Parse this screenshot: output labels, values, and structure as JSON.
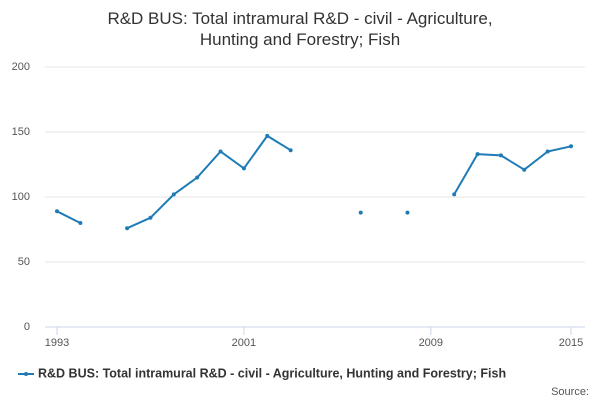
{
  "chart_data": {
    "type": "line",
    "title": "R&D BUS: Total intramural R&D - civil - Agriculture, Hunting and Forestry; Fish",
    "x": [
      1993,
      1994,
      1995,
      1996,
      1997,
      1998,
      1999,
      2000,
      2001,
      2002,
      2003,
      2004,
      2005,
      2006,
      2007,
      2008,
      2009,
      2010,
      2011,
      2012,
      2013,
      2014,
      2015
    ],
    "series": [
      {
        "name": "R&D BUS: Total intramural R&D - civil - Agriculture, Hunting and Forestry; Fish",
        "color": "#1f7bb6",
        "values": [
          89,
          80,
          null,
          76,
          84,
          102,
          115,
          135,
          122,
          147,
          136,
          null,
          null,
          88,
          null,
          88,
          null,
          102,
          133,
          132,
          121,
          135,
          139
        ]
      }
    ],
    "xlim": [
      1993,
      2015
    ],
    "xticks": [
      1993,
      2001,
      2009,
      2015
    ],
    "ylim": [
      0,
      200
    ],
    "yticks": [
      0,
      50,
      100,
      150,
      200
    ],
    "grid": true,
    "legend": "bottom",
    "source_label": "Source:"
  }
}
